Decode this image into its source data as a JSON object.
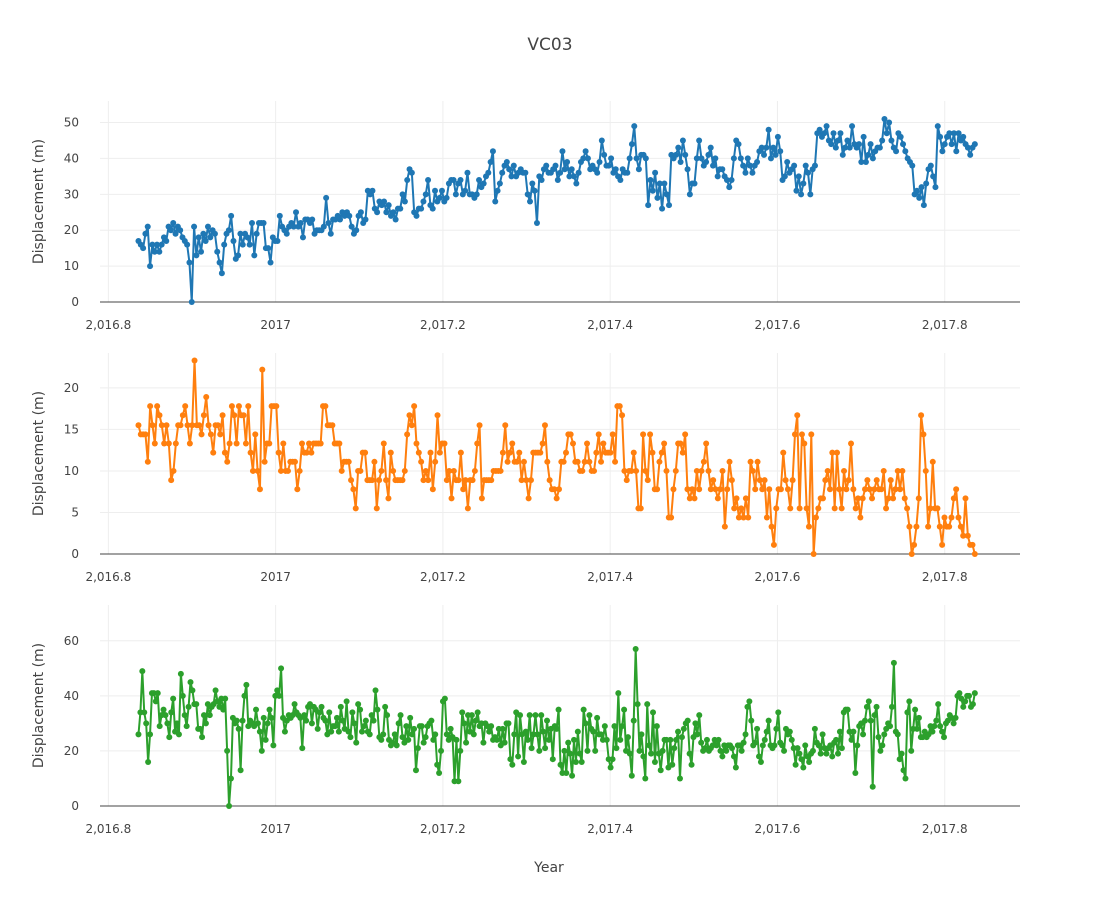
{
  "chart_data": {
    "type": "line",
    "title": "VC03",
    "xlabel": "Year",
    "xlim": [
      2016.79,
      2017.89
    ],
    "x_ticks": [
      2016.8,
      2017.0,
      2017.2,
      2017.4,
      2017.6,
      2017.8
    ],
    "x_tick_labels": [
      "2,016.8",
      "2017",
      "2,017.2",
      "2,017.4",
      "2,017.6",
      "2,017.8"
    ],
    "x_start": 2016.836,
    "x_end": 2017.836,
    "grid": true,
    "legend": "none",
    "panels": [
      {
        "name": "",
        "ylabel": "Displacement (m)",
        "color": "#1f77b4",
        "ylim": [
          0,
          56
        ],
        "y_ticks": [
          0,
          10,
          20,
          30,
          40,
          50
        ],
        "values": [
          17,
          16,
          15,
          19,
          21,
          10,
          16,
          14,
          16,
          14,
          16,
          18,
          17,
          21,
          20,
          22,
          19,
          21,
          20,
          18,
          17,
          16,
          11,
          0,
          21,
          13,
          18,
          14,
          19,
          17,
          21,
          18,
          20,
          19,
          14,
          11,
          8,
          16,
          19,
          20,
          24,
          17,
          12,
          13,
          19,
          16,
          19,
          18,
          16,
          22,
          13,
          19,
          22,
          22,
          22,
          15,
          15,
          11,
          18,
          17,
          17,
          24,
          21,
          20,
          19,
          21,
          22,
          21,
          25,
          21,
          22,
          18,
          23,
          23,
          22,
          23,
          19,
          20,
          20,
          20,
          21,
          29,
          22,
          19,
          23,
          23,
          24,
          23,
          25,
          24,
          25,
          24,
          21,
          19,
          20,
          24,
          25,
          22,
          23,
          31,
          30,
          31,
          26,
          25,
          28,
          27,
          28,
          25,
          27,
          24,
          25,
          23,
          26,
          26,
          30,
          28,
          34,
          37,
          36,
          25,
          24,
          26,
          26,
          28,
          30,
          34,
          27,
          26,
          31,
          28,
          29,
          31,
          28,
          29,
          33,
          34,
          34,
          30,
          33,
          34,
          30,
          31,
          36,
          30,
          30,
          29,
          30,
          34,
          32,
          33,
          35,
          36,
          39,
          42,
          28,
          31,
          33,
          36,
          38,
          39,
          37,
          35,
          38,
          35,
          36,
          37,
          36,
          36,
          30,
          28,
          33,
          31,
          22,
          35,
          34,
          37,
          38,
          36,
          36,
          37,
          38,
          34,
          36,
          42,
          37,
          39,
          35,
          37,
          35,
          33,
          36,
          39,
          40,
          42,
          40,
          37,
          38,
          37,
          36,
          39,
          45,
          41,
          38,
          38,
          40,
          36,
          37,
          35,
          34,
          37,
          36,
          36,
          40,
          44,
          49,
          40,
          37,
          41,
          41,
          40,
          27,
          34,
          31,
          36,
          29,
          33,
          26,
          33,
          30,
          27,
          41,
          40,
          41,
          43,
          39,
          45,
          41,
          37,
          30,
          33,
          33,
          40,
          45,
          40,
          38,
          39,
          41,
          43,
          38,
          40,
          35,
          37,
          37,
          35,
          34,
          32,
          34,
          40,
          45,
          44,
          40,
          38,
          36,
          40,
          38,
          36,
          38,
          39,
          42,
          43,
          41,
          43,
          48,
          40,
          43,
          41,
          46,
          42,
          34,
          35,
          39,
          36,
          37,
          38,
          31,
          35,
          30,
          33,
          38,
          36,
          30,
          37,
          38,
          47,
          48,
          46,
          47,
          49,
          45,
          44,
          47,
          43,
          45,
          47,
          41,
          43,
          45,
          43,
          49,
          44,
          43,
          44,
          39,
          46,
          39,
          41,
          44,
          40,
          42,
          43,
          43,
          45,
          51,
          47,
          50,
          45,
          43,
          42,
          47,
          46,
          44,
          42,
          40,
          39,
          38,
          30,
          31,
          29,
          32,
          27,
          33,
          37,
          38,
          35,
          32,
          49,
          46,
          42,
          44,
          46,
          47,
          44,
          47,
          42,
          47,
          45,
          46,
          44,
          43,
          41,
          43,
          44
        ]
      },
      {
        "name": "",
        "ylabel": "Displacement (m)",
        "color": "#ff7f0e",
        "ylim": [
          0,
          24.2
        ],
        "y_ticks": [
          0,
          5,
          10,
          15,
          20
        ],
        "values": [
          15.5,
          14.4,
          14.4,
          14.4,
          11.1,
          17.8,
          15.5,
          13.3,
          17.8,
          16.7,
          15.5,
          13.3,
          15.5,
          13.3,
          8.9,
          10.0,
          13.3,
          15.5,
          15.5,
          16.7,
          17.8,
          15.5,
          13.3,
          15.5,
          23.3,
          15.5,
          15.5,
          14.4,
          16.7,
          18.9,
          15.5,
          14.4,
          12.2,
          15.5,
          15.5,
          14.4,
          16.7,
          12.2,
          11.1,
          13.3,
          17.8,
          16.7,
          13.3,
          17.8,
          16.7,
          16.7,
          13.3,
          17.8,
          12.2,
          10.0,
          14.4,
          10.0,
          7.8,
          22.2,
          11.1,
          13.3,
          13.3,
          17.8,
          17.8,
          17.8,
          12.2,
          10.0,
          13.3,
          10.0,
          10.0,
          11.1,
          11.1,
          11.1,
          7.8,
          10.0,
          13.3,
          12.2,
          12.2,
          13.3,
          12.2,
          13.3,
          13.3,
          13.3,
          13.3,
          17.8,
          17.8,
          15.5,
          15.5,
          15.5,
          13.3,
          13.3,
          13.3,
          10.0,
          11.1,
          11.1,
          11.1,
          8.9,
          7.8,
          5.5,
          10.0,
          10.0,
          12.2,
          12.2,
          8.9,
          8.9,
          8.9,
          11.1,
          5.5,
          8.9,
          10.0,
          13.3,
          8.9,
          6.7,
          12.2,
          10.0,
          8.9,
          8.9,
          8.9,
          8.9,
          10.0,
          14.4,
          16.7,
          15.5,
          17.8,
          13.3,
          12.2,
          11.1,
          8.9,
          10.0,
          8.9,
          12.2,
          7.8,
          11.1,
          16.7,
          12.2,
          13.3,
          13.3,
          8.9,
          10.0,
          6.7,
          10.0,
          8.9,
          8.9,
          12.2,
          7.8,
          8.9,
          5.5,
          8.9,
          8.9,
          10.0,
          13.3,
          15.5,
          6.7,
          8.9,
          8.9,
          8.9,
          8.9,
          10.0,
          10.0,
          10.0,
          10.0,
          12.2,
          15.5,
          11.1,
          12.2,
          13.3,
          11.1,
          11.1,
          12.2,
          8.9,
          11.1,
          8.9,
          6.7,
          8.9,
          12.2,
          12.2,
          12.2,
          12.2,
          13.3,
          15.5,
          11.1,
          8.9,
          7.8,
          7.8,
          6.7,
          7.8,
          11.1,
          11.1,
          12.2,
          14.4,
          14.4,
          13.3,
          11.1,
          11.1,
          10.0,
          10.0,
          11.1,
          13.3,
          11.1,
          10.0,
          10.0,
          12.2,
          14.4,
          11.1,
          13.3,
          12.2,
          12.2,
          12.2,
          14.4,
          11.1,
          17.8,
          17.8,
          16.7,
          10.0,
          8.9,
          10.0,
          10.0,
          12.2,
          10.0,
          5.5,
          5.5,
          14.4,
          10.0,
          8.9,
          14.4,
          12.2,
          7.8,
          7.8,
          11.1,
          12.2,
          13.3,
          10.0,
          4.4,
          4.4,
          7.8,
          10.0,
          13.3,
          13.3,
          12.2,
          14.4,
          7.8,
          6.7,
          7.8,
          6.7,
          10.0,
          7.8,
          10.0,
          11.1,
          13.3,
          10.0,
          7.8,
          8.9,
          7.8,
          6.7,
          7.8,
          10.0,
          3.3,
          7.8,
          11.1,
          8.9,
          5.5,
          6.7,
          4.4,
          5.5,
          4.4,
          6.7,
          4.4,
          11.1,
          10.0,
          7.8,
          11.1,
          8.9,
          7.8,
          8.9,
          4.4,
          7.8,
          3.3,
          1.1,
          5.5,
          7.8,
          7.8,
          12.2,
          8.9,
          7.8,
          5.5,
          8.9,
          14.4,
          16.7,
          5.5,
          14.4,
          13.3,
          5.5,
          3.3,
          14.4,
          0.0,
          4.4,
          5.5,
          6.7,
          6.7,
          8.9,
          10.0,
          7.8,
          12.2,
          5.5,
          12.2,
          7.8,
          5.5,
          10.0,
          7.8,
          8.9,
          13.3,
          7.8,
          5.5,
          6.7,
          4.4,
          6.7,
          7.8,
          8.9,
          7.8,
          6.7,
          7.8,
          8.9,
          7.8,
          7.8,
          10.0,
          5.5,
          6.7,
          8.9,
          6.7,
          7.8,
          10.0,
          7.8,
          10.0,
          6.7,
          5.5,
          3.3,
          0.0,
          1.1,
          3.3,
          6.7,
          16.7,
          14.4,
          10.0,
          3.3,
          5.5,
          11.1,
          5.5,
          5.5,
          3.3,
          1.1,
          4.4,
          3.3,
          3.3,
          4.4,
          6.7,
          7.8,
          4.4,
          3.3,
          2.2,
          6.7,
          2.2,
          1.1,
          1.1,
          0.0
        ]
      },
      {
        "name": "",
        "ylabel": "Displacement (m)",
        "color": "#2ca02c",
        "ylim": [
          0,
          73
        ],
        "y_ticks": [
          0,
          20,
          40,
          60
        ],
        "values": [
          26,
          34,
          49,
          34,
          30,
          16,
          26,
          41,
          41,
          38,
          41,
          29,
          33,
          35,
          33,
          30,
          25,
          34,
          39,
          27,
          30,
          26,
          48,
          40,
          33,
          29,
          36,
          45,
          42,
          37,
          37,
          28,
          28,
          25,
          33,
          30,
          37,
          33,
          36,
          37,
          42,
          38,
          36,
          39,
          35,
          39,
          20,
          0,
          10,
          32,
          30,
          31,
          28,
          13,
          31,
          40,
          44,
          29,
          31,
          30,
          29,
          35,
          30,
          27,
          20,
          32,
          24,
          30,
          35,
          32,
          22,
          40,
          42,
          40,
          50,
          32,
          27,
          31,
          33,
          32,
          33,
          37,
          34,
          33,
          32,
          21,
          33,
          31,
          36,
          37,
          30,
          36,
          35,
          28,
          34,
          36,
          32,
          31,
          26,
          34,
          27,
          29,
          29,
          32,
          27,
          36,
          31,
          28,
          38,
          27,
          25,
          34,
          30,
          23,
          37,
          35,
          27,
          29,
          31,
          27,
          26,
          33,
          31,
          42,
          35,
          25,
          24,
          26,
          36,
          33,
          24,
          22,
          23,
          26,
          22,
          30,
          33,
          25,
          23,
          29,
          24,
          32,
          26,
          28,
          13,
          21,
          29,
          29,
          23,
          25,
          29,
          30,
          31,
          24,
          26,
          15,
          12,
          20,
          38,
          39,
          26,
          24,
          28,
          25,
          9,
          24,
          9,
          20,
          34,
          30,
          23,
          33,
          27,
          33,
          26,
          31,
          34,
          29,
          30,
          23,
          30,
          29,
          27,
          29,
          24,
          25,
          24,
          28,
          22,
          28,
          23,
          30,
          30,
          17,
          15,
          26,
          34,
          18,
          33,
          26,
          16,
          27,
          24,
          33,
          21,
          26,
          33,
          26,
          20,
          33,
          27,
          21,
          31,
          24,
          28,
          17,
          29,
          28,
          35,
          15,
          12,
          20,
          12,
          23,
          19,
          11,
          24,
          16,
          27,
          19,
          16,
          35,
          30,
          20,
          33,
          28,
          27,
          20,
          32,
          26,
          26,
          24,
          29,
          24,
          17,
          14,
          17,
          29,
          21,
          41,
          24,
          29,
          35,
          20,
          25,
          19,
          11,
          31,
          57,
          37,
          20,
          26,
          18,
          10,
          37,
          22,
          19,
          34,
          16,
          29,
          19,
          13,
          20,
          24,
          24,
          14,
          24,
          15,
          21,
          24,
          27,
          10,
          25,
          28,
          30,
          31,
          19,
          15,
          25,
          30,
          26,
          33,
          23,
          20,
          21,
          24,
          20,
          21,
          22,
          24,
          22,
          24,
          20,
          18,
          22,
          20,
          22,
          22,
          21,
          18,
          14,
          22,
          22,
          20,
          23,
          26,
          36,
          38,
          31,
          22,
          23,
          28,
          18,
          16,
          22,
          24,
          27,
          31,
          22,
          21,
          22,
          28,
          34,
          23,
          22,
          20,
          28,
          26,
          27,
          24,
          21,
          15,
          21,
          19,
          17,
          14,
          22,
          18,
          16,
          19,
          20,
          28,
          23,
          22,
          19,
          26,
          21,
          19,
          21,
          22,
          18,
          23,
          24,
          19,
          27,
          21,
          34,
          35,
          35,
          27,
          24,
          27,
          12,
          22,
          29,
          30,
          26,
          31,
          36,
          38,
          31,
          7,
          33,
          36,
          25,
          20,
          22,
          26,
          28,
          30,
          29,
          36,
          52,
          27,
          26,
          17,
          19,
          13,
          10,
          34,
          38,
          20,
          28,
          35,
          28,
          32,
          25,
          25,
          27,
          25,
          26,
          29,
          27,
          29,
          31,
          37,
          29,
          27,
          25,
          30,
          31,
          33,
          32,
          30,
          32,
          40,
          41,
          39,
          36,
          38,
          40,
          40,
          36,
          37,
          41
        ]
      }
    ]
  }
}
